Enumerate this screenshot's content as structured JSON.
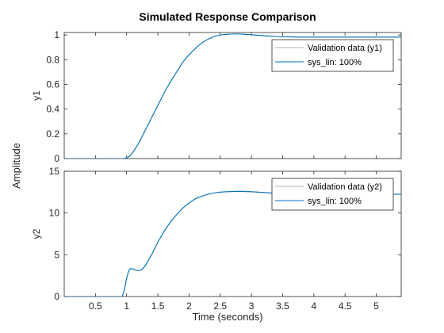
{
  "figure": {
    "title": "Simulated Response Comparison",
    "ylabel": "Amplitude",
    "xlabel": "Time (seconds)"
  },
  "chart_data": [
    {
      "type": "line",
      "ylabel": "y1",
      "xlim": [
        0,
        5.4
      ],
      "ylim": [
        0,
        1.02
      ],
      "xticks": [
        0.5,
        1,
        1.5,
        2,
        2.5,
        3,
        3.5,
        4,
        4.5,
        5
      ],
      "xtick_labels": [
        "",
        "",
        "",
        "",
        "",
        "",
        "",
        "",
        "",
        ""
      ],
      "yticks": [
        0,
        0.2,
        0.4,
        0.6,
        0.8,
        1
      ],
      "ytick_labels": [
        "0",
        "0.2",
        "0.4",
        "0.6",
        "0.8",
        "1"
      ],
      "grid": false,
      "legend_position": "top-right",
      "series": [
        {
          "name": "Validation data (y1)",
          "color": "#b3b3b3",
          "x": [
            0,
            0.95,
            1.0,
            1.05,
            1.1,
            1.2,
            1.3,
            1.4,
            1.5,
            1.6,
            1.7,
            1.8,
            1.9,
            2.0,
            2.1,
            2.2,
            2.3,
            2.4,
            2.5,
            2.6,
            2.7,
            2.8,
            3.0,
            3.2,
            3.4,
            3.6,
            3.8,
            4.0,
            4.4,
            4.8,
            5.2,
            5.4
          ],
          "y": [
            0,
            0,
            0.005,
            0.02,
            0.05,
            0.13,
            0.23,
            0.33,
            0.43,
            0.53,
            0.62,
            0.7,
            0.78,
            0.84,
            0.89,
            0.935,
            0.965,
            0.988,
            1.0,
            1.005,
            1.008,
            1.008,
            1.002,
            0.994,
            0.988,
            0.985,
            0.983,
            0.983,
            0.983,
            0.983,
            0.983,
            0.983
          ]
        },
        {
          "name": "sys_lin:  100%",
          "color": "#0072bd",
          "x": [
            0,
            0.95,
            1.0,
            1.05,
            1.1,
            1.2,
            1.3,
            1.4,
            1.5,
            1.6,
            1.7,
            1.8,
            1.9,
            2.0,
            2.1,
            2.2,
            2.3,
            2.4,
            2.5,
            2.6,
            2.7,
            2.8,
            3.0,
            3.2,
            3.4,
            3.6,
            3.8,
            4.0,
            4.4,
            4.8,
            5.2,
            5.4
          ],
          "y": [
            0,
            0,
            0.005,
            0.02,
            0.05,
            0.13,
            0.23,
            0.33,
            0.43,
            0.53,
            0.62,
            0.7,
            0.78,
            0.84,
            0.89,
            0.935,
            0.965,
            0.988,
            1.0,
            1.005,
            1.008,
            1.008,
            1.002,
            0.994,
            0.988,
            0.985,
            0.983,
            0.983,
            0.983,
            0.983,
            0.983,
            0.983
          ]
        }
      ]
    },
    {
      "type": "line",
      "ylabel": "y2",
      "xlim": [
        0,
        5.4
      ],
      "ylim": [
        0,
        15
      ],
      "xticks": [
        0.5,
        1,
        1.5,
        2,
        2.5,
        3,
        3.5,
        4,
        4.5,
        5
      ],
      "xtick_labels": [
        "0.5",
        "1",
        "1.5",
        "2",
        "2.5",
        "3",
        "3.5",
        "4",
        "4.5",
        "5"
      ],
      "yticks": [
        0,
        5,
        10,
        15
      ],
      "ytick_labels": [
        "0",
        "5",
        "10",
        "15"
      ],
      "grid": false,
      "legend_position": "top-right",
      "series": [
        {
          "name": "Validation data (y2)",
          "color": "#b3b3b3",
          "x": [
            0,
            0.93,
            0.97,
            1.0,
            1.03,
            1.06,
            1.1,
            1.15,
            1.2,
            1.25,
            1.3,
            1.4,
            1.5,
            1.6,
            1.7,
            1.8,
            1.9,
            2.0,
            2.1,
            2.2,
            2.3,
            2.4,
            2.5,
            2.6,
            2.8,
            3.0,
            3.2,
            3.4,
            3.6,
            4.0,
            4.4,
            4.8,
            5.2,
            5.4
          ],
          "y": [
            0,
            0,
            1.0,
            2.2,
            3.0,
            3.35,
            3.3,
            3.15,
            3.1,
            3.25,
            3.7,
            5.0,
            6.5,
            7.8,
            8.9,
            9.8,
            10.6,
            11.2,
            11.7,
            12.0,
            12.25,
            12.4,
            12.5,
            12.55,
            12.6,
            12.55,
            12.45,
            12.35,
            12.3,
            12.25,
            12.25,
            12.25,
            12.25,
            12.25
          ]
        },
        {
          "name": "sys_lin:  100%",
          "color": "#0072bd",
          "x": [
            0,
            0.93,
            0.97,
            1.0,
            1.03,
            1.06,
            1.1,
            1.15,
            1.2,
            1.25,
            1.3,
            1.4,
            1.5,
            1.6,
            1.7,
            1.8,
            1.9,
            2.0,
            2.1,
            2.2,
            2.3,
            2.4,
            2.5,
            2.6,
            2.8,
            3.0,
            3.2,
            3.4,
            3.6,
            4.0,
            4.4,
            4.8,
            5.2,
            5.4
          ],
          "y": [
            0,
            0,
            1.0,
            2.2,
            3.0,
            3.35,
            3.3,
            3.15,
            3.1,
            3.25,
            3.7,
            5.0,
            6.5,
            7.8,
            8.9,
            9.8,
            10.6,
            11.2,
            11.7,
            12.0,
            12.25,
            12.4,
            12.5,
            12.55,
            12.6,
            12.55,
            12.45,
            12.35,
            12.3,
            12.25,
            12.25,
            12.25,
            12.25,
            12.25
          ]
        }
      ]
    }
  ]
}
